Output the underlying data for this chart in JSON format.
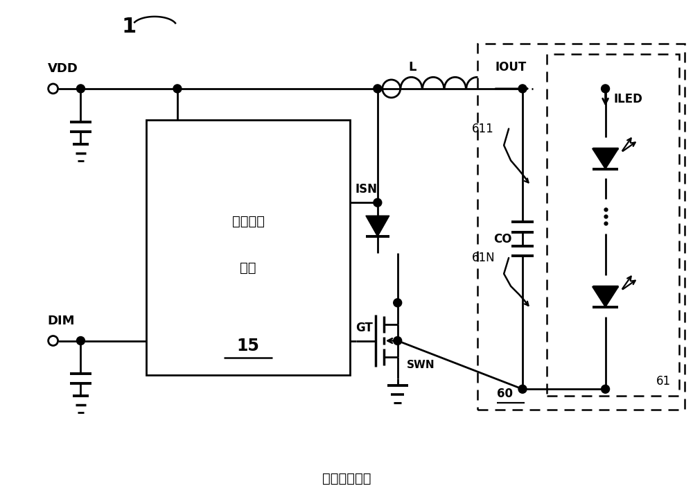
{
  "title": "（现有技术）",
  "label_1": "1",
  "label_15": "15",
  "label_VDD": "VDD",
  "label_DIM": "DIM",
  "label_ISN": "ISN",
  "label_GT": "GT",
  "label_SWN": "SWN",
  "label_L": "L",
  "label_IOUT": "IOUT",
  "label_ILED": "ILED",
  "label_CO": "CO",
  "label_611": "611",
  "label_61N": "61N",
  "label_61": "61",
  "label_60": "60",
  "label_zhuan": "转换控制",
  "label_dian": "电路",
  "bg_color": "#ffffff",
  "line_color": "#000000"
}
